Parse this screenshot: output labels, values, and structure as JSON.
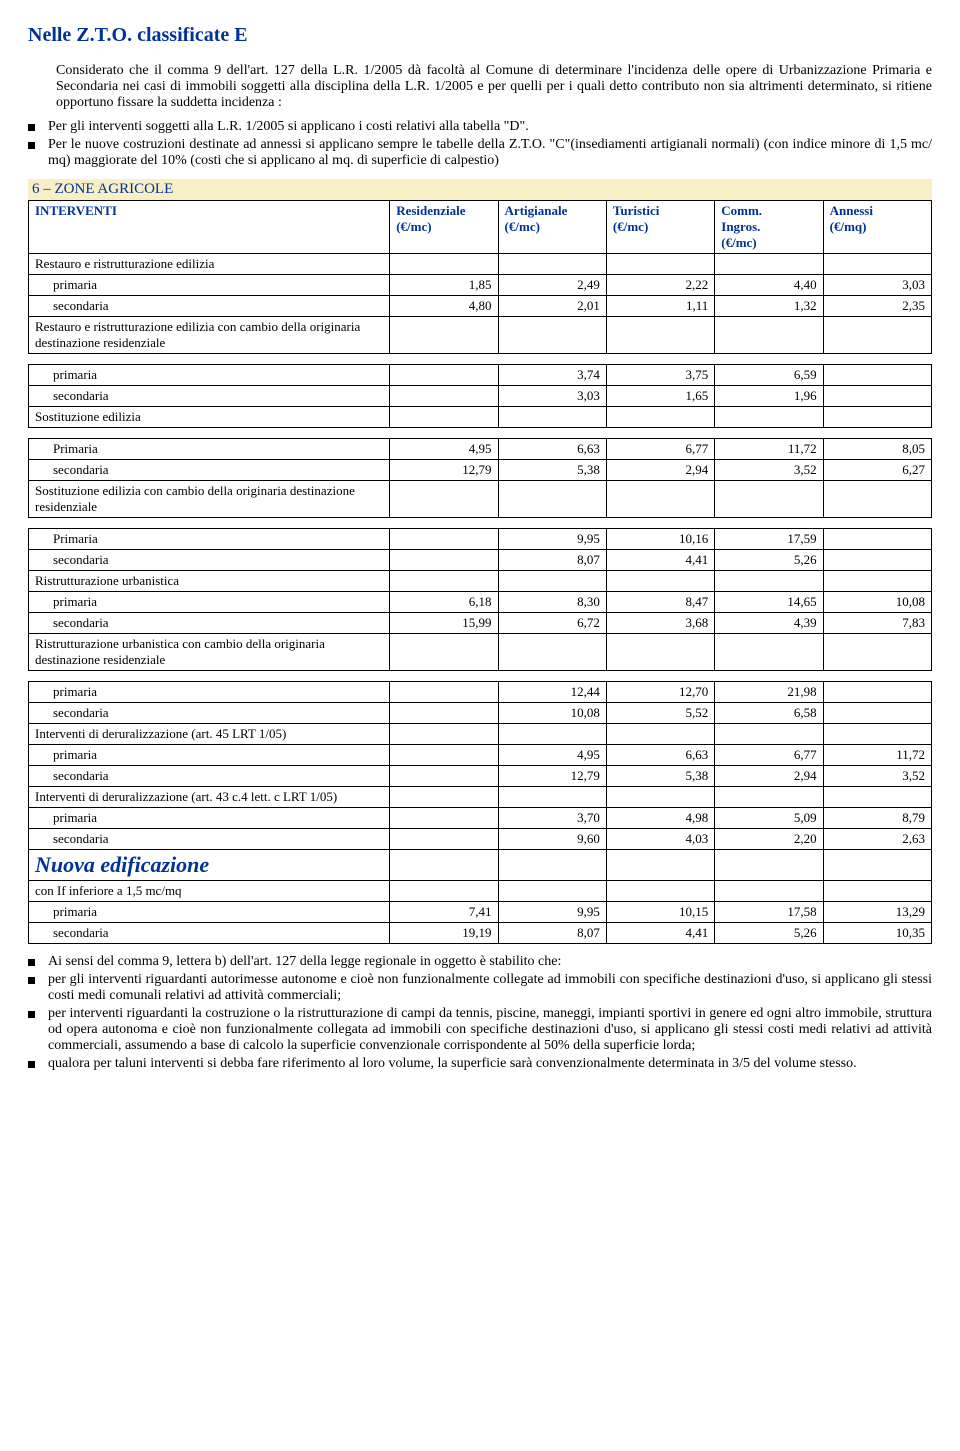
{
  "title": "Nelle Z.T.O.  classificate E",
  "intro_para": "Considerato che il comma 9 dell'art. 127 della L.R. 1/2005 dà facoltà al Comune di determinare l'incidenza delle opere di Urbanizzazione Primaria e Secondaria nei casi di  immobili soggetti alla disciplina della L.R.  1/2005 e per quelli per i quali detto contributo non sia altrimenti determinato, si ritiene opportuno fissare la suddetta incidenza :",
  "intro_bul1": "Per gli interventi soggetti alla L.R. 1/2005 si applicano i costi relativi alla  tabella \"D\".",
  "intro_bul2": "Per le nuove costruzioni destinate ad annessi si applicano sempre le tabelle della Z.T.O. \"C\"(insediamenti artigianali normali) (con indice minore di 1,5 mc/ mq) maggiorate del 10% (costi che si applicano al mq. di superficie di calpestio)",
  "band": "6 – ZONE AGRICOLE",
  "hdr": {
    "c0": "INTERVENTI",
    "c1a": "Residenziale",
    "c1b": "(€/mc)",
    "c2a": "Artigianale",
    "c2b": "(€/mc)",
    "c3a": "Turistici",
    "c3b": "(€/mc)",
    "c4a": "Comm.",
    "c4b": "Ingros.",
    "c4c": "(€/mc)",
    "c5a": "Annessi",
    "c5b": "(€/mq)"
  },
  "rows": {
    "restauro": "Restauro e ristrutturazione edilizia",
    "restauro_p": {
      "l": "primaria",
      "v": [
        "1,85",
        "2,49",
        "2,22",
        "4,40",
        "3,03"
      ]
    },
    "restauro_s": {
      "l": "secondaria",
      "v": [
        "4,80",
        "2,01",
        "1,11",
        "1,32",
        "2,35"
      ]
    },
    "restauro_cambio": "Restauro e ristrutturazione edilizia con cambio della originaria destinazione residenziale",
    "rc_p": {
      "l": "primaria",
      "v": [
        "",
        "3,74",
        "3,75",
        "6,59",
        ""
      ]
    },
    "rc_s": {
      "l": "secondaria",
      "v": [
        "",
        "3,03",
        "1,65",
        "1,96",
        ""
      ]
    },
    "sost": "Sostituzione edilizia",
    "sost_p": {
      "l": "Primaria",
      "v": [
        "4,95",
        "6,63",
        "6,77",
        "11,72",
        "8,05"
      ]
    },
    "sost_s": {
      "l": "secondaria",
      "v": [
        "12,79",
        "5,38",
        "2,94",
        "3,52",
        "6,27"
      ]
    },
    "sost_cambio": "Sostituzione edilizia con cambio della originaria destinazione residenziale",
    "sc_p": {
      "l": "Primaria",
      "v": [
        "",
        "9,95",
        "10,16",
        "17,59",
        ""
      ]
    },
    "sc_s": {
      "l": "secondaria",
      "v": [
        "",
        "8,07",
        "4,41",
        "5,26",
        ""
      ]
    },
    "ristr": "Ristrutturazione urbanistica",
    "ristr_p": {
      "l": "primaria",
      "v": [
        "6,18",
        "8,30",
        "8,47",
        "14,65",
        "10,08"
      ]
    },
    "ristr_s": {
      "l": "secondaria",
      "v": [
        "15,99",
        "6,72",
        "3,68",
        "4,39",
        "7,83"
      ]
    },
    "ristr_cambio": "Ristrutturazione urbanistica con cambio della originaria destinazione residenziale",
    "rcc_p": {
      "l": "primaria",
      "v": [
        "",
        "12,44",
        "12,70",
        "21,98",
        ""
      ]
    },
    "rcc_s": {
      "l": "secondaria",
      "v": [
        "",
        "10,08",
        "5,52",
        "6,58",
        ""
      ]
    },
    "derur45": "Interventi di deruralizzazione (art. 45 LRT 1/05)",
    "d45_p": {
      "l": "primaria",
      "v": [
        "",
        "4,95",
        "6,63",
        "6,77",
        "11,72"
      ]
    },
    "d45_s": {
      "l": "secondaria",
      "v": [
        "",
        "12,79",
        "5,38",
        "2,94",
        "3,52"
      ]
    },
    "derur43": "Interventi di deruralizzazione (art. 43 c.4 lett. c LRT 1/05)",
    "d43_p": {
      "l": "primaria",
      "v": [
        "",
        "3,70",
        "4,98",
        "5,09",
        "8,79"
      ]
    },
    "d43_s": {
      "l": "secondaria",
      "v": [
        "",
        "9,60",
        "4,03",
        "2,20",
        "2,63"
      ]
    },
    "nuova": "Nuova edificazione",
    "if15": "con If inferiore a 1,5 mc/mq",
    "ne_p": {
      "l": "primaria",
      "v": [
        "7,41",
        "9,95",
        "10,15",
        "17,58",
        "13,29"
      ]
    },
    "ne_s": {
      "l": "secondaria",
      "v": [
        "19,19",
        "8,07",
        "4,41",
        "5,26",
        "10,35"
      ]
    }
  },
  "foot_b1": "Ai sensi del comma 9, lettera b) dell'art. 127  della legge regionale in oggetto è stabilito che:",
  "foot_b2": "per gli interventi riguardanti autorimesse autonome e cioè non funzionalmente collegate ad immobili con specifiche destinazioni d'uso, si applicano gli stessi costi medi comunali relativi ad attività commerciali;",
  "foot_b3": "per interventi riguardanti la costruzione o la ristrutturazione di campi da tennis, piscine, maneggi, impianti sportivi in genere ed ogni altro immobile, struttura od opera autonoma e cioè non funzionalmente collegata ad immobili con specifiche destinazioni d'uso, si applicano gli stessi costi medi relativi ad attività commerciali, assumendo a base di calcolo la superficie convenzionale corrispondente al 50% della superficie lorda;",
  "foot_b4": "qualora per taluni interventi si debba fare riferimento al loro volume, la superficie sarà convenzionalmente determinata in 3/5 del volume stesso."
}
